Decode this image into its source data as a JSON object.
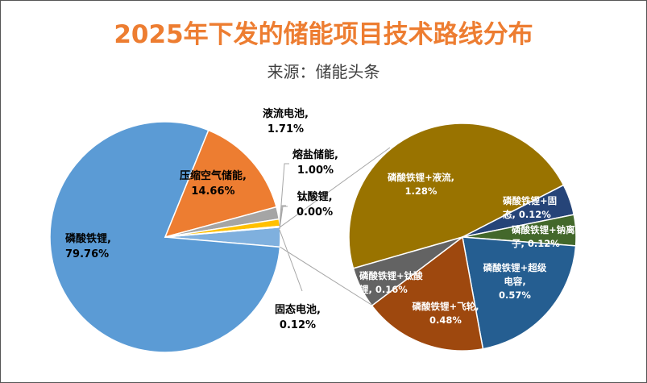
{
  "chart_data": {
    "type": "pie-of-pie",
    "title": "2025年下发的储能项目技术路线分布",
    "subtitle": "来源：储能头条",
    "main_pie": [
      {
        "name": "磷酸铁锂",
        "value": 79.76,
        "label": "79.76%",
        "color": "#5B9BD5"
      },
      {
        "name": "压缩空气储能",
        "value": 14.66,
        "label": "14.66%",
        "color": "#ED7D31"
      },
      {
        "name": "液流电池",
        "value": 1.71,
        "label": "1.71%",
        "color": "#A5A5A5"
      },
      {
        "name": "熔盐储能",
        "value": 1.0,
        "label": "1.00%",
        "color": "#FFC000"
      },
      {
        "name": "钛酸锂",
        "value": 0.0,
        "label": "0.00%",
        "color": "#4472C4"
      },
      {
        "name": "固态电池",
        "value": 0.12,
        "label": "0.12%",
        "color": "#70AD47"
      }
    ],
    "other_color": "#7FB0DE",
    "secondary_pie": [
      {
        "name": "磷酸铁锂+液流",
        "value": 1.28,
        "label": "1.28%",
        "color": "#997300"
      },
      {
        "name": "磷酸铁锂+固态",
        "value": 0.12,
        "label": "0.12%",
        "color": "#264478"
      },
      {
        "name": "磷酸铁锂+钠离子",
        "value": 0.12,
        "label": "0.12%",
        "color": "#43682B"
      },
      {
        "name": "磷酸铁锂+超级电容",
        "value": 0.57,
        "label": "0.57%",
        "color": "#255E91"
      },
      {
        "name": "磷酸铁锂+飞轮",
        "value": 0.48,
        "label": "0.48%",
        "color": "#9E480E"
      },
      {
        "name": "磷酸铁锂+钛酸锂",
        "value": 0.16,
        "label": "0.16%",
        "color": "#636363"
      }
    ]
  }
}
